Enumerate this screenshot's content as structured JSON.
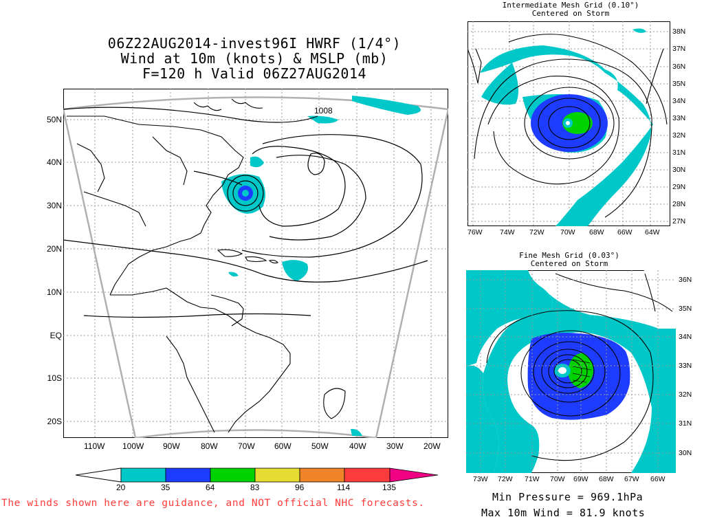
{
  "main_title": {
    "line1": "06Z22AUG2014-invest96I HWRF (1/4°)",
    "line2": "Wind at 10m (knots) & MSLP (mb)",
    "line3": "F=120 h Valid 06Z27AUG2014"
  },
  "main_map": {
    "lat_labels": [
      "50N",
      "40N",
      "30N",
      "20N",
      "10N",
      "EQ",
      "10S",
      "20S"
    ],
    "lon_labels": [
      "110W",
      "100W",
      "90W",
      "80W",
      "70W",
      "60W",
      "50W",
      "40W",
      "30W",
      "20W"
    ],
    "contour_label": "1008"
  },
  "intermediate_panel": {
    "title_line1": "Intermediate Mesh Grid (0.10°)",
    "title_line2": "Centered on Storm",
    "lat_labels": [
      "38N",
      "37N",
      "36N",
      "35N",
      "34N",
      "33N",
      "32N",
      "31N",
      "30N",
      "29N",
      "28N",
      "27N"
    ],
    "lon_labels": [
      "76W",
      "74W",
      "72W",
      "70W",
      "68W",
      "66W",
      "64W"
    ]
  },
  "fine_panel": {
    "title_line1": "Fine Mesh Grid (0.03°)",
    "title_line2": "Centered on Storm",
    "lat_labels": [
      "36N",
      "35N",
      "34N",
      "33N",
      "32N",
      "31N",
      "30N"
    ],
    "lon_labels": [
      "73W",
      "72W",
      "71W",
      "70W",
      "69W",
      "68W",
      "67W",
      "66W"
    ]
  },
  "colorbar": {
    "labels": [
      "20",
      "35",
      "64",
      "83",
      "96",
      "114",
      "135"
    ],
    "colors": [
      "#00c8c8",
      "#1e3cff",
      "#00d200",
      "#e6dc32",
      "#f08228",
      "#fa3c3c",
      "#f00082"
    ]
  },
  "disclaimer": "The winds shown here are guidance, and NOT official NHC forecasts.",
  "stats": {
    "min_pressure": "Min Pressure = 969.1hPa",
    "max_wind": "Max 10m Wind = 81.9 knots"
  }
}
